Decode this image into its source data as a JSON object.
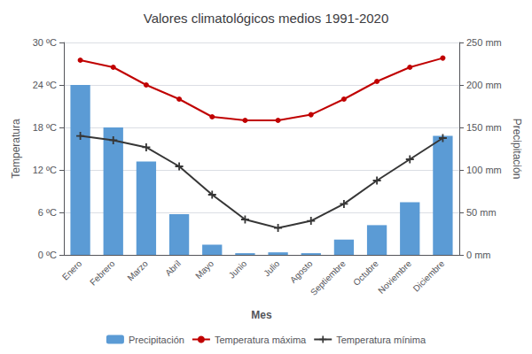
{
  "chart_data": {
    "type": "bar",
    "title": "Valores climatológicos medios 1991-2020",
    "xlabel": "Mes",
    "ylabel": "Temperatura",
    "y2label": "Precipitación",
    "categories": [
      "Enero",
      "Febrero",
      "Marzo",
      "Abril",
      "Mayo",
      "Junio",
      "Julio",
      "Agosto",
      "Septiembre",
      "Octubre",
      "Noviembre",
      "Diciembre"
    ],
    "series": [
      {
        "name": "Precipitación",
        "type": "bar",
        "axis": "y2",
        "color": "#5b9bd5",
        "values": [
          200,
          150,
          110,
          48,
          12,
          2,
          3,
          2,
          18,
          35,
          62,
          140
        ]
      },
      {
        "name": "Temperatura máxima",
        "type": "line",
        "color": "#c00000",
        "marker": "circle",
        "values": [
          27.5,
          26.5,
          24.0,
          22.0,
          19.5,
          19.0,
          19.0,
          19.8,
          22.0,
          24.5,
          26.5,
          27.8
        ]
      },
      {
        "name": "Temperatura mínima",
        "type": "line",
        "color": "#363636",
        "marker": "plus",
        "values": [
          16.8,
          16.2,
          15.2,
          12.5,
          8.5,
          5.0,
          3.8,
          4.8,
          7.2,
          10.5,
          13.5,
          16.5
        ]
      }
    ],
    "ylim": [
      0,
      30
    ],
    "yticks": [
      {
        "value": 0,
        "label": "0 ºC"
      },
      {
        "value": 6,
        "label": "6 ºC"
      },
      {
        "value": 12,
        "label": "12 ºC"
      },
      {
        "value": 18,
        "label": "18 ºC"
      },
      {
        "value": 24,
        "label": "24 ºC"
      },
      {
        "value": 30,
        "label": "30 ºC"
      }
    ],
    "y2lim": [
      0,
      250
    ],
    "y2ticks": [
      {
        "value": 0,
        "label": "0 mm"
      },
      {
        "value": 50,
        "label": "50 mm"
      },
      {
        "value": 100,
        "label": "100 mm"
      },
      {
        "value": 150,
        "label": "150 mm"
      },
      {
        "value": 200,
        "label": "200 mm"
      },
      {
        "value": 250,
        "label": "250 mm"
      }
    ],
    "grid": true,
    "legend": "bottom"
  }
}
